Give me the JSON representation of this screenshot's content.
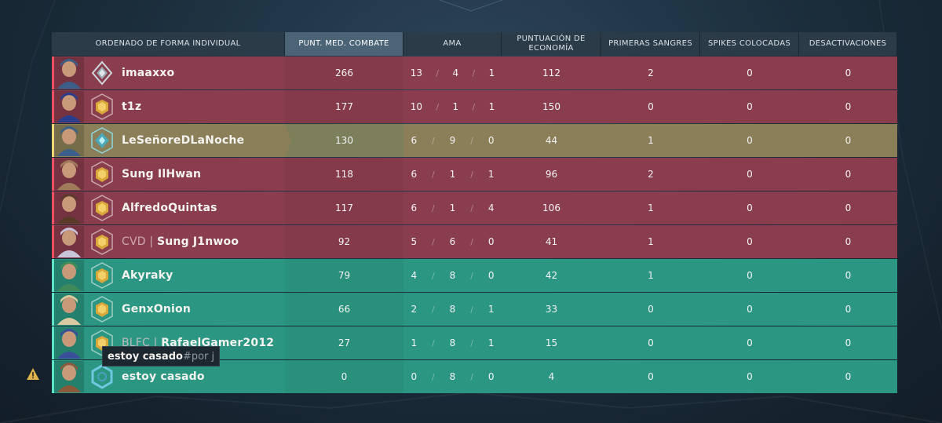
{
  "header": {
    "name_col": "ORDENADO DE FORMA INDIVIDUAL",
    "acs_col": "PUNT. MED. COMBATE",
    "kda_col": "AMA",
    "econ_col": "PUNTUACIÓN DE ECONOMÍA",
    "fb_col": "PRIMERAS SANGRES",
    "plants_col": "SPIKES COLOCADAS",
    "defuses_col": "DESACTIVACIONES"
  },
  "rows": [
    {
      "team": "red",
      "clan": "",
      "name": "imaaxxo",
      "acs": "266",
      "k": "13",
      "d": "4",
      "a": "1",
      "econ": "112",
      "fb": "2",
      "pl": "0",
      "df": "0",
      "agent_color": "#3c5f8a",
      "rank_icon": "platinum-rank-icon"
    },
    {
      "team": "red",
      "clan": "",
      "name": "t1z",
      "acs": "177",
      "k": "10",
      "d": "1",
      "a": "1",
      "econ": "150",
      "fb": "0",
      "pl": "0",
      "df": "0",
      "agent_color": "#2a3e8e",
      "rank_icon": "gold-rank-icon"
    },
    {
      "team": "self",
      "clan": "",
      "name": "LeSeñoreDLaNoche",
      "acs": "130",
      "k": "6",
      "d": "9",
      "a": "0",
      "econ": "44",
      "fb": "1",
      "pl": "0",
      "df": "0",
      "agent_color": "#3c5f8a",
      "rank_icon": "diamond-rank-icon"
    },
    {
      "team": "red",
      "clan": "",
      "name": "Sung IlHwan",
      "acs": "118",
      "k": "6",
      "d": "1",
      "a": "1",
      "econ": "96",
      "fb": "2",
      "pl": "0",
      "df": "0",
      "agent_color": "#a07a5a",
      "rank_icon": "gold-rank-icon"
    },
    {
      "team": "red",
      "clan": "",
      "name": "AlfredoQuintas",
      "acs": "117",
      "k": "6",
      "d": "1",
      "a": "4",
      "econ": "106",
      "fb": "1",
      "pl": "0",
      "df": "0",
      "agent_color": "#5a3a2a",
      "rank_icon": "gold-rank-icon"
    },
    {
      "team": "red",
      "clan": "CVD | ",
      "name": "Sung J1nwoo",
      "acs": "92",
      "k": "5",
      "d": "6",
      "a": "0",
      "econ": "41",
      "fb": "1",
      "pl": "0",
      "df": "0",
      "agent_color": "#c9c5d8",
      "rank_icon": "gold-rank-icon"
    },
    {
      "team": "green",
      "clan": "",
      "name": "Akyraky",
      "acs": "79",
      "k": "4",
      "d": "8",
      "a": "0",
      "econ": "42",
      "fb": "1",
      "pl": "0",
      "df": "0",
      "agent_color": "#3f8a5a",
      "rank_icon": "gold-rank-icon"
    },
    {
      "team": "green",
      "clan": "",
      "name": "GenxOnion",
      "acs": "66",
      "k": "2",
      "d": "8",
      "a": "1",
      "econ": "33",
      "fb": "0",
      "pl": "0",
      "df": "0",
      "agent_color": "#d9c9a0",
      "rank_icon": "gold-rank-icon"
    },
    {
      "team": "green",
      "clan": "BLFC | ",
      "name": "RafaelGamer2012",
      "acs": "27",
      "k": "1",
      "d": "8",
      "a": "1",
      "econ": "15",
      "fb": "0",
      "pl": "0",
      "df": "0",
      "agent_color": "#3a4f9a",
      "rank_icon": "gold-rank-icon"
    },
    {
      "team": "green",
      "clan": "",
      "name": "estoy casado",
      "acs": "0",
      "k": "0",
      "d": "8",
      "a": "0",
      "econ": "4",
      "fb": "0",
      "pl": "0",
      "df": "0",
      "agent_color": "#8a5a3a",
      "rank_icon": "unranked-icon"
    }
  ],
  "kda_separator": "/",
  "tooltip": {
    "name": "estoy casado",
    "tag": "#por j"
  },
  "colors": {
    "red_row": "#8a3d4d",
    "green_row": "#2b9681",
    "self_row": "#8a7f58",
    "header": "#2c3b48"
  }
}
